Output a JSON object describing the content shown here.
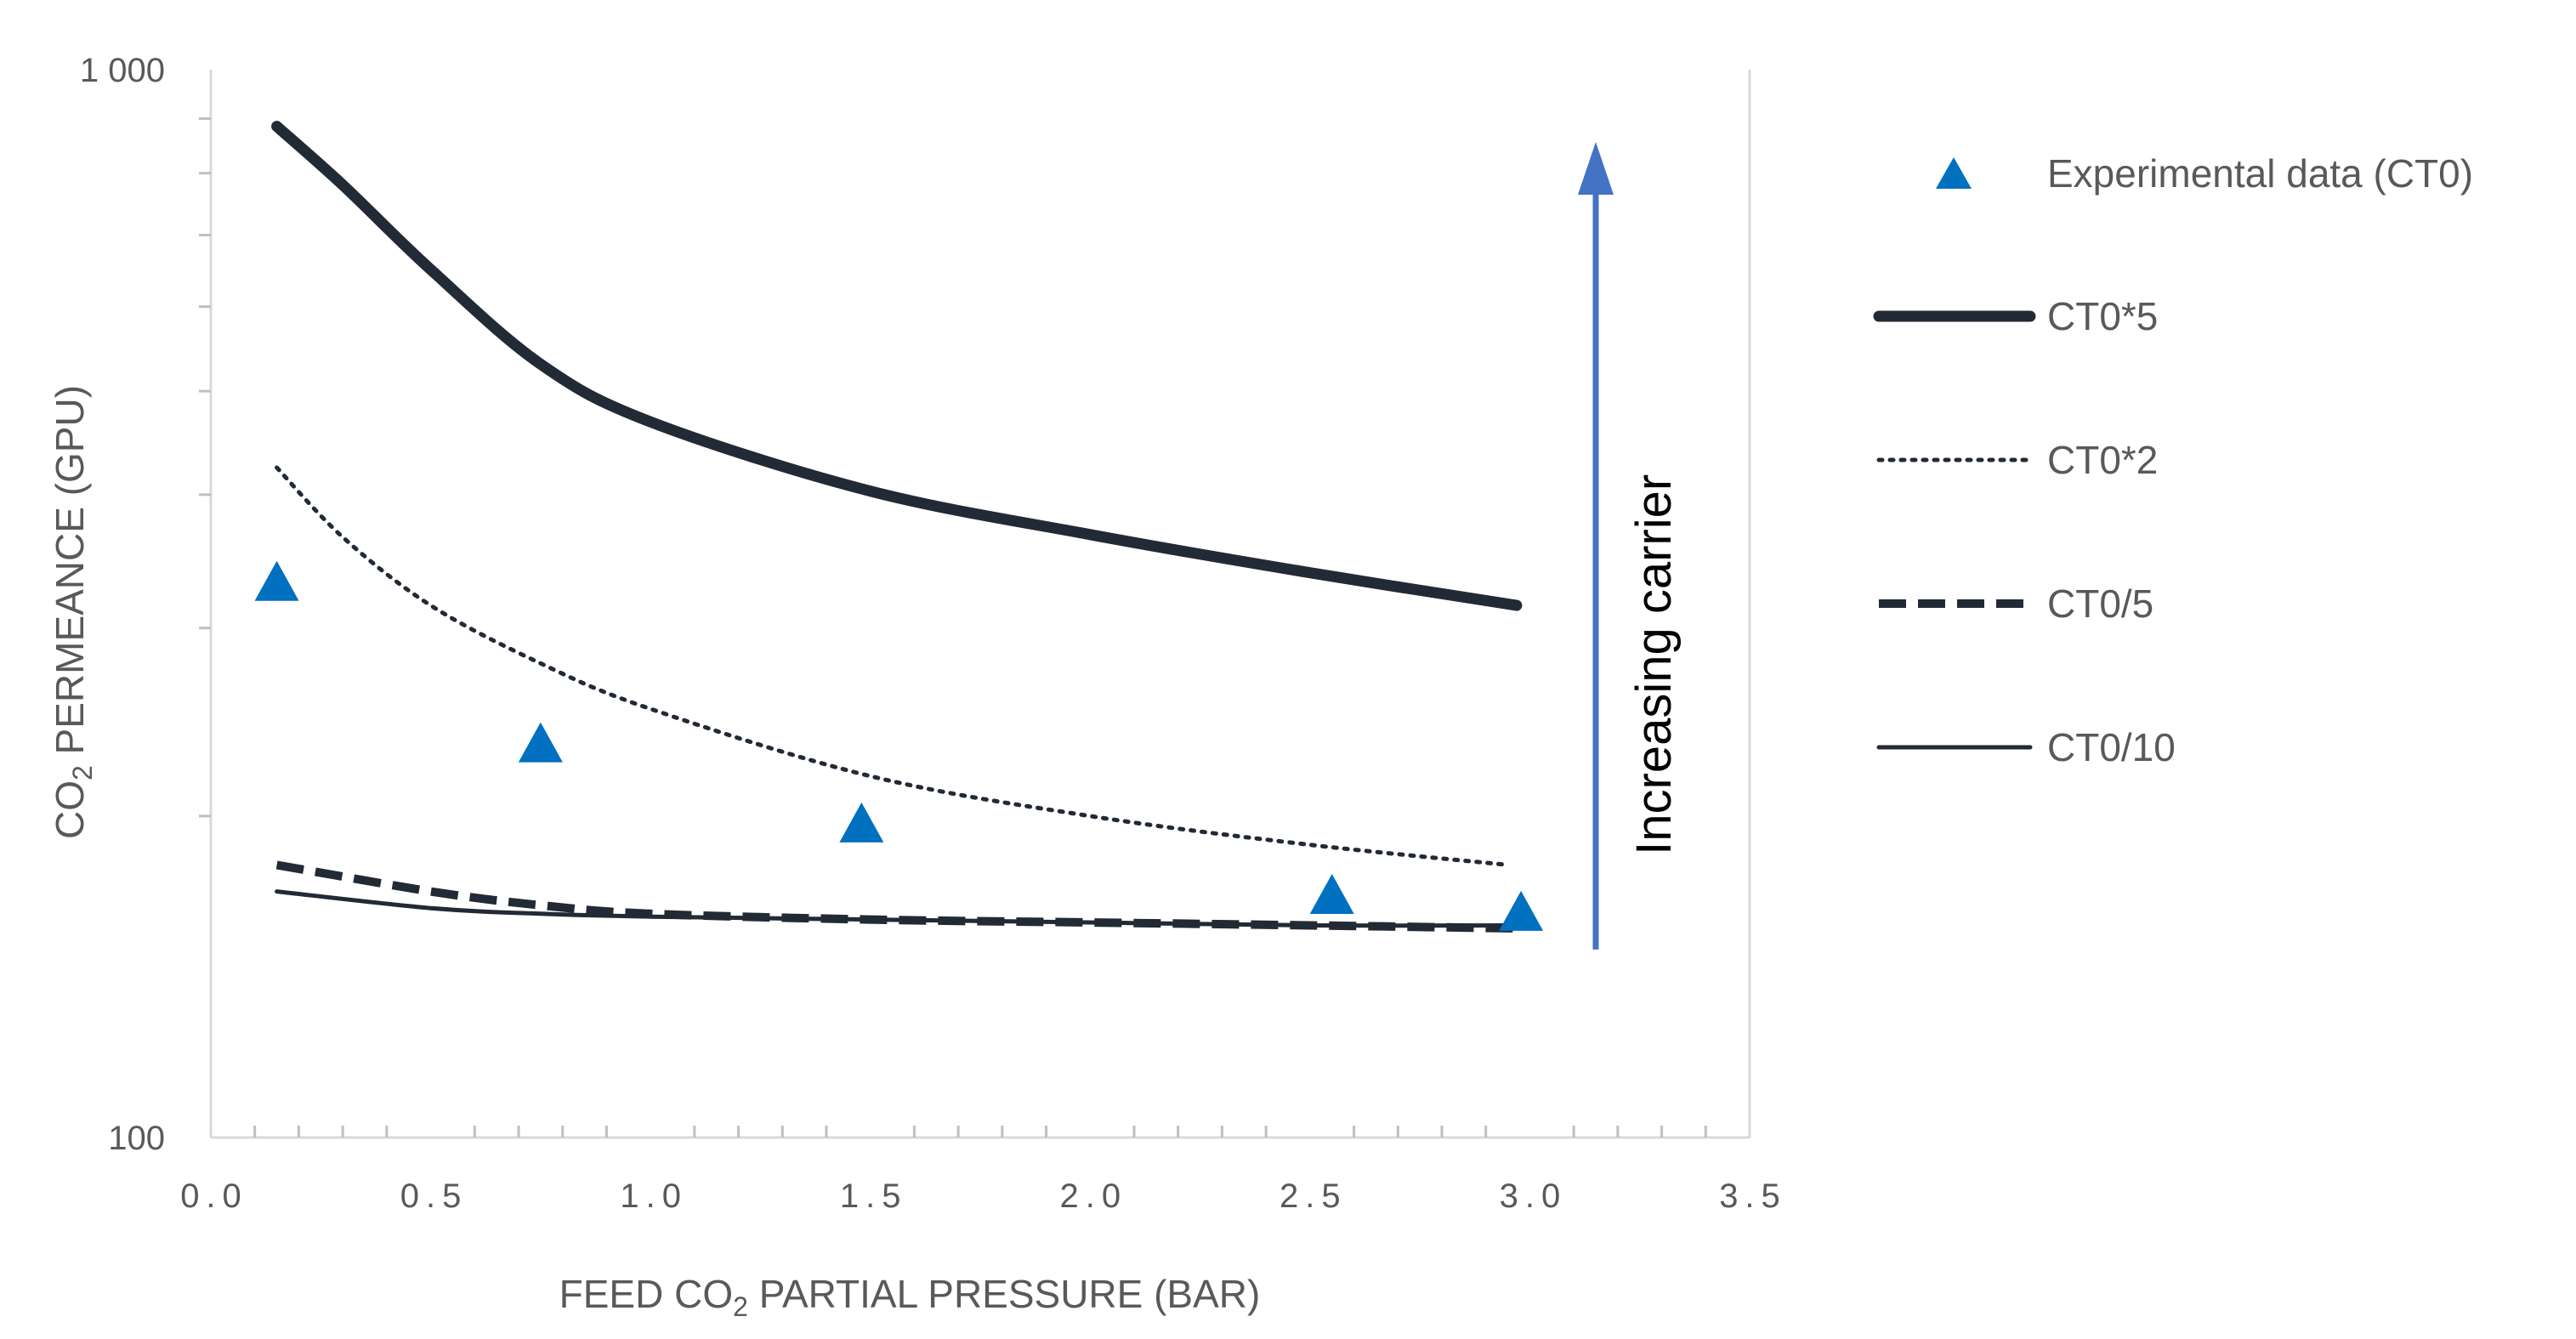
{
  "chart_data": {
    "type": "line",
    "title": "",
    "xlabel": "FEED CO2 PARTIAL PRESSURE (BAR)",
    "xlabel_parts": {
      "pre": "FEED CO",
      "sub": "2",
      "post": " PARTIAL PRESSURE (BAR)"
    },
    "ylabel": "CO2 PERMEANCE (GPU)",
    "ylabel_parts": {
      "pre": "CO",
      "sub": "2",
      "post": " PERMEANCE (GPU)"
    },
    "xlim": [
      0,
      3.5
    ],
    "ylim": [
      100,
      1000
    ],
    "yscale": "log",
    "x_ticks": [
      {
        "value": 0.0,
        "label": "0.0"
      },
      {
        "value": 0.5,
        "label": "0.5"
      },
      {
        "value": 1.0,
        "label": "1.0"
      },
      {
        "value": 1.5,
        "label": "1.5"
      },
      {
        "value": 2.0,
        "label": "2.0"
      },
      {
        "value": 2.5,
        "label": "2.5"
      },
      {
        "value": 3.0,
        "label": "3.0"
      },
      {
        "value": 3.5,
        "label": "3.5"
      }
    ],
    "y_ticks": [
      {
        "value": 100,
        "label": "100"
      },
      {
        "value": 1000,
        "label": "1 000"
      }
    ],
    "grid": false,
    "legend_position": "right",
    "series": [
      {
        "name": "Experimental data (CT0)",
        "kind": "scatter",
        "color": "#0070C0",
        "x": [
          0.15,
          0.75,
          1.48,
          2.55,
          2.98
        ],
        "y": [
          330,
          233,
          196,
          168,
          162
        ]
      },
      {
        "name": "CT0*5",
        "kind": "line",
        "style": "solid-thick",
        "color": "#222a35",
        "x": [
          0.15,
          0.3,
          0.5,
          0.75,
          1.0,
          1.5,
          2.0,
          2.5,
          2.97
        ],
        "y": [
          885,
          780,
          650,
          530,
          468,
          403,
          367,
          338,
          315
        ]
      },
      {
        "name": "CT0*2",
        "kind": "line",
        "style": "dotted",
        "color": "#222a35",
        "x": [
          0.15,
          0.3,
          0.5,
          0.75,
          1.0,
          1.5,
          2.0,
          2.5,
          2.95
        ],
        "y": [
          424,
          365,
          315,
          278,
          252,
          218,
          200,
          188,
          180
        ]
      },
      {
        "name": "CT0/5",
        "kind": "line",
        "style": "dashed",
        "color": "#222a35",
        "x": [
          0.15,
          0.5,
          0.75,
          1.0,
          1.5,
          2.0,
          2.5,
          2.97
        ],
        "y": [
          180,
          170,
          165,
          162,
          160,
          159,
          158,
          157
        ]
      },
      {
        "name": "CT0/10",
        "kind": "line",
        "style": "solid-thin",
        "color": "#222a35",
        "x": [
          0.15,
          0.5,
          0.75,
          1.0,
          1.5,
          2.0,
          2.5,
          2.97
        ],
        "y": [
          170,
          164,
          162,
          161,
          160,
          159,
          158,
          158
        ]
      }
    ],
    "annotation": {
      "text": "Increasing carrier",
      "arrow_color": "#4472C4",
      "x": 3.15,
      "y_from": 150,
      "y_to": 810
    }
  }
}
